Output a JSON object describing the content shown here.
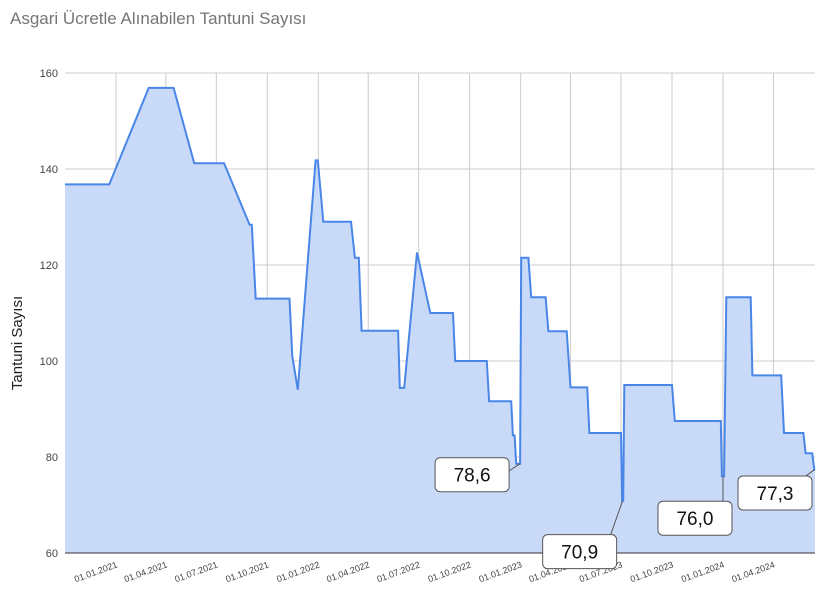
{
  "chart_data": {
    "type": "area",
    "title": "Asgari Ücretle Alınabilen Tantuni Sayısı",
    "xlabel": "",
    "ylabel": "Tantuni Sayısı",
    "xlim": [
      "2020-10-01",
      "2024-06-15"
    ],
    "ylim": [
      60,
      160
    ],
    "y_ticks": [
      60,
      80,
      100,
      120,
      140,
      160
    ],
    "x_ticks": [
      {
        "date": "2021-01-01",
        "label": "01.01.2021"
      },
      {
        "date": "2021-04-01",
        "label": "01.04.2021"
      },
      {
        "date": "2021-07-01",
        "label": "01.07.2021"
      },
      {
        "date": "2021-10-01",
        "label": "01.10.2021"
      },
      {
        "date": "2022-01-01",
        "label": "01.01.2022"
      },
      {
        "date": "2022-04-01",
        "label": "01.04.2022"
      },
      {
        "date": "2022-07-01",
        "label": "01.07.2022"
      },
      {
        "date": "2022-10-01",
        "label": "01.10.2022"
      },
      {
        "date": "2023-01-01",
        "label": "01.01.2023"
      },
      {
        "date": "2023-04-01",
        "label": "01.04.2023"
      },
      {
        "date": "2023-07-01",
        "label": "01.07.2023"
      },
      {
        "date": "2023-10-01",
        "label": "01.10.2023"
      },
      {
        "date": "2024-01-01",
        "label": "01.01.2024"
      },
      {
        "date": "2024-04-01",
        "label": "01.04.2024"
      }
    ],
    "grid": true,
    "series": [
      {
        "color": "#4a86e8",
        "fill": "#c9daf8",
        "points": [
          [
            "2020-10-01",
            136.8
          ],
          [
            "2020-12-20",
            136.8
          ],
          [
            "2021-03-01",
            156.9
          ],
          [
            "2021-04-15",
            156.9
          ],
          [
            "2021-05-22",
            141.2
          ],
          [
            "2021-07-15",
            141.2
          ],
          [
            "2021-08-30",
            128.4
          ],
          [
            "2021-09-03",
            128.4
          ],
          [
            "2021-09-10",
            113.0
          ],
          [
            "2021-11-10",
            113.0
          ],
          [
            "2021-11-15",
            101.0
          ],
          [
            "2021-11-25",
            94.0
          ],
          [
            "2021-12-27",
            141.8
          ],
          [
            "2021-12-31",
            141.8
          ],
          [
            "2022-01-10",
            129.0
          ],
          [
            "2022-03-01",
            129.0
          ],
          [
            "2022-03-08",
            121.5
          ],
          [
            "2022-03-15",
            121.5
          ],
          [
            "2022-03-20",
            106.3
          ],
          [
            "2022-05-25",
            106.3
          ],
          [
            "2022-05-28",
            94.4
          ],
          [
            "2022-06-05",
            94.4
          ],
          [
            "2022-06-28",
            122.6
          ],
          [
            "2022-07-22",
            110.0
          ],
          [
            "2022-09-01",
            110.0
          ],
          [
            "2022-09-05",
            100.0
          ],
          [
            "2022-11-01",
            100.0
          ],
          [
            "2022-11-05",
            91.6
          ],
          [
            "2022-12-15",
            91.6
          ],
          [
            "2022-12-18",
            84.5
          ],
          [
            "2022-12-21",
            84.5
          ],
          [
            "2022-12-24",
            78.6
          ],
          [
            "2022-12-31",
            78.6
          ],
          [
            "2023-01-02",
            121.5
          ],
          [
            "2023-01-15",
            121.5
          ],
          [
            "2023-01-20",
            113.3
          ],
          [
            "2023-02-15",
            113.3
          ],
          [
            "2023-02-20",
            106.2
          ],
          [
            "2023-03-25",
            106.2
          ],
          [
            "2023-04-01",
            94.5
          ],
          [
            "2023-05-01",
            94.5
          ],
          [
            "2023-05-05",
            85.0
          ],
          [
            "2023-07-01",
            85.0
          ],
          [
            "2023-07-03",
            70.9
          ],
          [
            "2023-07-05",
            70.9
          ],
          [
            "2023-07-07",
            95.0
          ],
          [
            "2023-10-01",
            95.0
          ],
          [
            "2023-10-06",
            87.5
          ],
          [
            "2023-12-28",
            87.5
          ],
          [
            "2023-12-30",
            76.0
          ],
          [
            "2024-01-03",
            76.0
          ],
          [
            "2024-01-07",
            113.3
          ],
          [
            "2024-02-20",
            113.3
          ],
          [
            "2024-02-23",
            97.0
          ],
          [
            "2024-04-15",
            97.0
          ],
          [
            "2024-04-20",
            85.0
          ],
          [
            "2024-05-25",
            85.0
          ],
          [
            "2024-05-29",
            80.8
          ],
          [
            "2024-06-10",
            80.8
          ],
          [
            "2024-06-14",
            77.3
          ],
          [
            "2024-06-15",
            77.3
          ]
        ]
      }
    ],
    "annotations": [
      {
        "text": "78,6",
        "date": "2022-12-31",
        "value": 78.6
      },
      {
        "text": "70,9",
        "date": "2023-07-04",
        "value": 70.9
      },
      {
        "text": "76,0",
        "date": "2024-01-01",
        "value": 76.0
      },
      {
        "text": "77,3",
        "date": "2024-06-15",
        "value": 77.3
      }
    ]
  }
}
